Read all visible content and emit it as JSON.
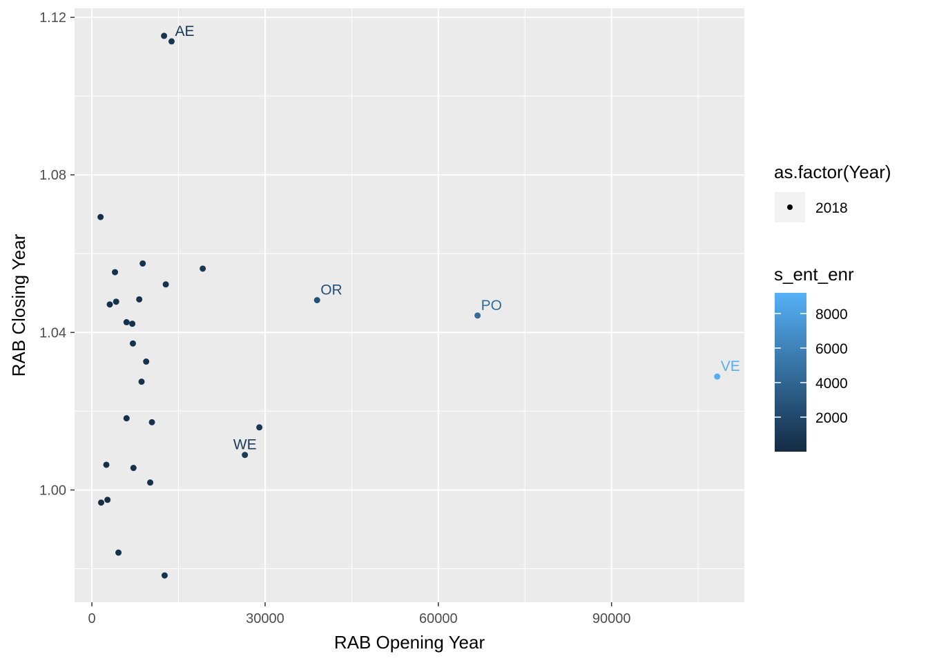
{
  "chart_data": {
    "type": "scatter",
    "xlabel": "RAB Opening Year",
    "ylabel": "RAB Closing Year",
    "xlim": [
      -3000,
      113000
    ],
    "ylim": [
      0.9715,
      1.1223
    ],
    "x_ticks": [
      0,
      30000,
      60000,
      90000
    ],
    "x_tick_labels": [
      "0",
      "30000",
      "60000",
      "90000"
    ],
    "y_ticks": [
      1.0,
      1.04,
      1.08,
      1.12
    ],
    "y_tick_labels": [
      "1.00",
      "1.04",
      "1.08",
      "1.12"
    ],
    "grid": true,
    "legend_position": "right",
    "shape_legend": {
      "title": "as.factor(Year)",
      "entries": [
        "2018"
      ]
    },
    "color_legend": {
      "title": "s_ent_enr",
      "min": 0,
      "max": 9200,
      "ticks": [
        2000,
        4000,
        6000,
        8000
      ],
      "tick_labels": [
        "2000",
        "4000",
        "6000",
        "8000"
      ],
      "low_color": "#132b43",
      "high_color": "#56b1f7"
    },
    "points": [
      {
        "x": 12500,
        "y": 1.1153,
        "c": 600,
        "label": ""
      },
      {
        "x": 13800,
        "y": 1.1139,
        "c": 700,
        "label": "AE"
      },
      {
        "x": 1500,
        "y": 1.0693,
        "c": 300,
        "label": ""
      },
      {
        "x": 8800,
        "y": 1.0575,
        "c": 500,
        "label": ""
      },
      {
        "x": 19200,
        "y": 1.0562,
        "c": 800,
        "label": ""
      },
      {
        "x": 4000,
        "y": 1.0553,
        "c": 400,
        "label": ""
      },
      {
        "x": 12800,
        "y": 1.0522,
        "c": 500,
        "label": ""
      },
      {
        "x": 39000,
        "y": 1.0482,
        "c": 2600,
        "label": "OR"
      },
      {
        "x": 8200,
        "y": 1.0484,
        "c": 500,
        "label": ""
      },
      {
        "x": 4200,
        "y": 1.0478,
        "c": 400,
        "label": ""
      },
      {
        "x": 3100,
        "y": 1.0471,
        "c": 300,
        "label": ""
      },
      {
        "x": 66800,
        "y": 1.0443,
        "c": 4400,
        "label": "PO"
      },
      {
        "x": 6000,
        "y": 1.0426,
        "c": 400,
        "label": ""
      },
      {
        "x": 7000,
        "y": 1.0422,
        "c": 400,
        "label": ""
      },
      {
        "x": 7100,
        "y": 1.0372,
        "c": 400,
        "label": ""
      },
      {
        "x": 9400,
        "y": 1.0326,
        "c": 500,
        "label": ""
      },
      {
        "x": 108300,
        "y": 1.0288,
        "c": 9000,
        "label": "VE"
      },
      {
        "x": 8600,
        "y": 1.0275,
        "c": 500,
        "label": ""
      },
      {
        "x": 6000,
        "y": 1.0182,
        "c": 400,
        "label": ""
      },
      {
        "x": 10400,
        "y": 1.0172,
        "c": 500,
        "label": ""
      },
      {
        "x": 29000,
        "y": 1.0159,
        "c": 900,
        "label": ""
      },
      {
        "x": 26500,
        "y": 1.0089,
        "c": 1000,
        "label": "WE"
      },
      {
        "x": 2500,
        "y": 1.0064,
        "c": 300,
        "label": ""
      },
      {
        "x": 7200,
        "y": 1.0056,
        "c": 400,
        "label": ""
      },
      {
        "x": 10100,
        "y": 1.0019,
        "c": 500,
        "label": ""
      },
      {
        "x": 2700,
        "y": 0.9975,
        "c": 300,
        "label": ""
      },
      {
        "x": 1600,
        "y": 0.9968,
        "c": 300,
        "label": ""
      },
      {
        "x": 4600,
        "y": 0.9841,
        "c": 400,
        "label": ""
      },
      {
        "x": 12600,
        "y": 0.9783,
        "c": 500,
        "label": ""
      }
    ]
  }
}
